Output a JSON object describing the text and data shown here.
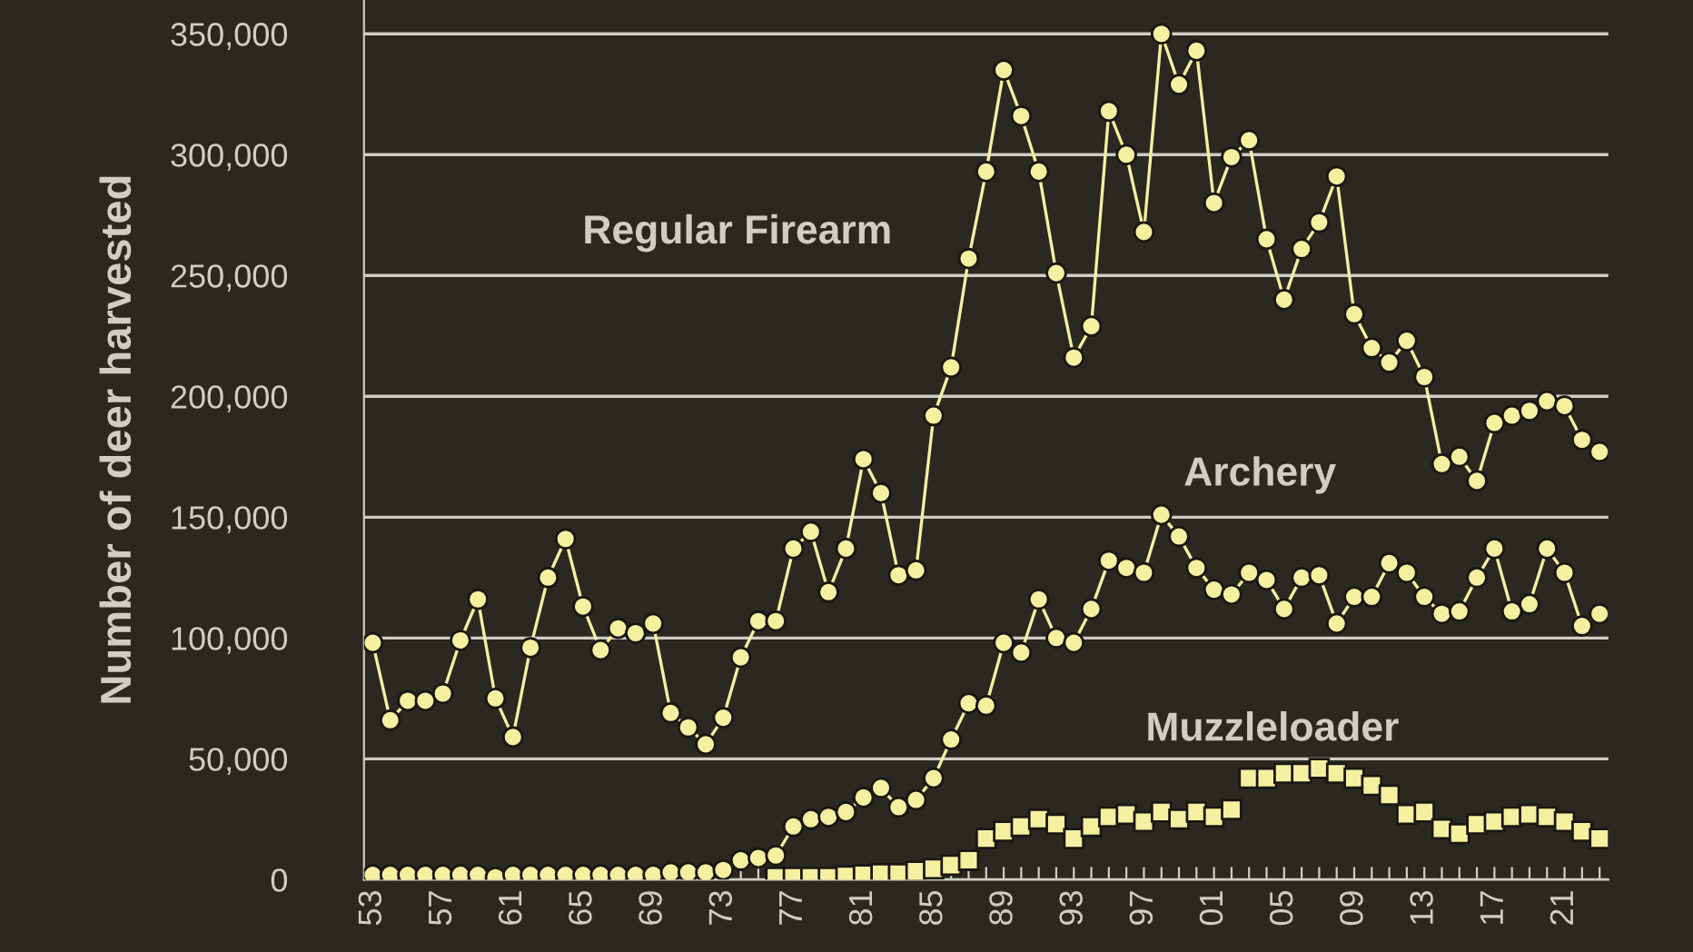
{
  "chart_data": {
    "type": "line",
    "ylabel": "Number of deer harvested",
    "x": [
      1953,
      1954,
      1955,
      1956,
      1957,
      1958,
      1959,
      1960,
      1961,
      1962,
      1963,
      1964,
      1965,
      1966,
      1967,
      1968,
      1969,
      1970,
      1971,
      1972,
      1973,
      1974,
      1975,
      1976,
      1977,
      1978,
      1979,
      1980,
      1981,
      1982,
      1983,
      1984,
      1985,
      1986,
      1987,
      1988,
      1989,
      1990,
      1991,
      1992,
      1993,
      1994,
      1995,
      1996,
      1997,
      1998,
      1999,
      2000,
      2001,
      2002,
      2003,
      2004,
      2005,
      2006,
      2007,
      2008,
      2009,
      2010,
      2011,
      2012,
      2013,
      2014,
      2015,
      2016,
      2017,
      2018,
      2019,
      2020,
      2021,
      2022,
      2023
    ],
    "series": [
      {
        "name": "Regular Firearm",
        "color": "#f5f0a0",
        "marker": "circle",
        "values": [
          98000,
          66000,
          74000,
          74000,
          77000,
          99000,
          116000,
          75000,
          59000,
          96000,
          125000,
          141000,
          113000,
          95000,
          104000,
          102000,
          106000,
          69000,
          63000,
          56000,
          67000,
          92000,
          107000,
          107000,
          137000,
          144000,
          119000,
          137000,
          174000,
          160000,
          126000,
          128000,
          192000,
          212000,
          257000,
          293000,
          335000,
          316000,
          293000,
          251000,
          216000,
          229000,
          318000,
          300000,
          268000,
          350000,
          329000,
          343000,
          280000,
          299000,
          306000,
          265000,
          240000,
          261000,
          272000,
          291000,
          234000,
          220000,
          214000,
          223000,
          208000,
          172000,
          175000,
          165000,
          189000,
          192000,
          194000,
          198000,
          196000,
          182000,
          177000
        ]
      },
      {
        "name": "Archery",
        "color": "#f5f0a0",
        "marker": "circle",
        "values": [
          2000,
          2000,
          2000,
          2000,
          2000,
          2000,
          2000,
          1000,
          2000,
          2000,
          2000,
          2000,
          2000,
          2000,
          2000,
          2000,
          2000,
          3000,
          3000,
          3000,
          4000,
          8000,
          9000,
          10000,
          22000,
          25000,
          26000,
          28000,
          34000,
          38000,
          30000,
          33000,
          42000,
          58000,
          73000,
          72000,
          98000,
          94000,
          116000,
          100000,
          98000,
          112000,
          132000,
          129000,
          127000,
          151000,
          142000,
          129000,
          120000,
          118000,
          127000,
          124000,
          112000,
          125000,
          126000,
          106000,
          117000,
          117000,
          131000,
          127000,
          117000,
          110000,
          111000,
          125000,
          137000,
          111000,
          114000,
          137000,
          127000,
          105000,
          110000
        ]
      },
      {
        "name": "Muzzleloader",
        "type": "scatter",
        "color": "#f5f0a0",
        "marker": "square",
        "values": [
          null,
          null,
          null,
          null,
          null,
          null,
          null,
          null,
          null,
          null,
          null,
          null,
          null,
          null,
          null,
          null,
          null,
          null,
          null,
          null,
          null,
          null,
          null,
          1000,
          1000,
          1000,
          1000,
          1500,
          2000,
          2500,
          2500,
          3500,
          4500,
          6000,
          8000,
          17000,
          20000,
          22000,
          25000,
          23000,
          17000,
          22000,
          26000,
          27000,
          24000,
          28000,
          25000,
          28000,
          26000,
          29000,
          42000,
          42000,
          44000,
          44000,
          46000,
          44000,
          42000,
          39000,
          35000,
          27000,
          28000,
          21000,
          19000,
          23000,
          24000,
          26000,
          27000,
          26000,
          24000,
          20000,
          17000
        ]
      }
    ],
    "xlim": [
      1952.5,
      2023.5
    ],
    "xticks": [
      {
        "value": 1953,
        "label": "53"
      },
      {
        "value": 1954,
        "label": null
      },
      {
        "value": 1955,
        "label": null
      },
      {
        "value": 1956,
        "label": null
      },
      {
        "value": 1957,
        "label": "57"
      },
      {
        "value": 1958,
        "label": null
      },
      {
        "value": 1959,
        "label": null
      },
      {
        "value": 1960,
        "label": null
      },
      {
        "value": 1961,
        "label": "61"
      },
      {
        "value": 1962,
        "label": null
      },
      {
        "value": 1963,
        "label": null
      },
      {
        "value": 1964,
        "label": null
      },
      {
        "value": 1965,
        "label": "65"
      },
      {
        "value": 1966,
        "label": null
      },
      {
        "value": 1967,
        "label": null
      },
      {
        "value": 1968,
        "label": null
      },
      {
        "value": 1969,
        "label": "69"
      },
      {
        "value": 1970,
        "label": null
      },
      {
        "value": 1971,
        "label": null
      },
      {
        "value": 1972,
        "label": null
      },
      {
        "value": 1973,
        "label": "73"
      },
      {
        "value": 1974,
        "label": null
      },
      {
        "value": 1975,
        "label": null
      },
      {
        "value": 1976,
        "label": null
      },
      {
        "value": 1977,
        "label": "77"
      },
      {
        "value": 1978,
        "label": null
      },
      {
        "value": 1979,
        "label": null
      },
      {
        "value": 1980,
        "label": null
      },
      {
        "value": 1981,
        "label": "81"
      },
      {
        "value": 1982,
        "label": null
      },
      {
        "value": 1983,
        "label": null
      },
      {
        "value": 1984,
        "label": null
      },
      {
        "value": 1985,
        "label": "85"
      },
      {
        "value": 1986,
        "label": null
      },
      {
        "value": 1987,
        "label": null
      },
      {
        "value": 1988,
        "label": null
      },
      {
        "value": 1989,
        "label": "89"
      },
      {
        "value": 1990,
        "label": null
      },
      {
        "value": 1991,
        "label": null
      },
      {
        "value": 1992,
        "label": null
      },
      {
        "value": 1993,
        "label": "93"
      },
      {
        "value": 1994,
        "label": null
      },
      {
        "value": 1995,
        "label": null
      },
      {
        "value": 1996,
        "label": null
      },
      {
        "value": 1997,
        "label": "97"
      },
      {
        "value": 1998,
        "label": null
      },
      {
        "value": 1999,
        "label": null
      },
      {
        "value": 2000,
        "label": null
      },
      {
        "value": 2001,
        "label": "01"
      },
      {
        "value": 2002,
        "label": null
      },
      {
        "value": 2003,
        "label": null
      },
      {
        "value": 2004,
        "label": null
      },
      {
        "value": 2005,
        "label": "05"
      },
      {
        "value": 2006,
        "label": null
      },
      {
        "value": 2007,
        "label": null
      },
      {
        "value": 2008,
        "label": null
      },
      {
        "value": 2009,
        "label": "09"
      },
      {
        "value": 2010,
        "label": null
      },
      {
        "value": 2011,
        "label": null
      },
      {
        "value": 2012,
        "label": null
      },
      {
        "value": 2013,
        "label": "13"
      },
      {
        "value": 2014,
        "label": null
      },
      {
        "value": 2015,
        "label": null
      },
      {
        "value": 2016,
        "label": null
      },
      {
        "value": 2017,
        "label": "17"
      },
      {
        "value": 2018,
        "label": null
      },
      {
        "value": 2019,
        "label": null
      },
      {
        "value": 2020,
        "label": null
      },
      {
        "value": 2021,
        "label": "21"
      },
      {
        "value": 2022,
        "label": null
      },
      {
        "value": 2023,
        "label": null
      }
    ],
    "ylim": [
      0,
      364000
    ],
    "yticks": [
      0,
      {
        "value": 50000,
        "label": "50,000"
      },
      {
        "value": 100000,
        "label": "100,000"
      },
      {
        "value": 150000,
        "label": "150,000"
      },
      {
        "value": 200000,
        "label": "200,000"
      },
      {
        "value": 250000,
        "label": "250,000"
      },
      {
        "value": 300000,
        "label": "300,000"
      },
      {
        "value": 350000,
        "label": "350,000"
      }
    ],
    "grid": "y",
    "legend": false
  }
}
